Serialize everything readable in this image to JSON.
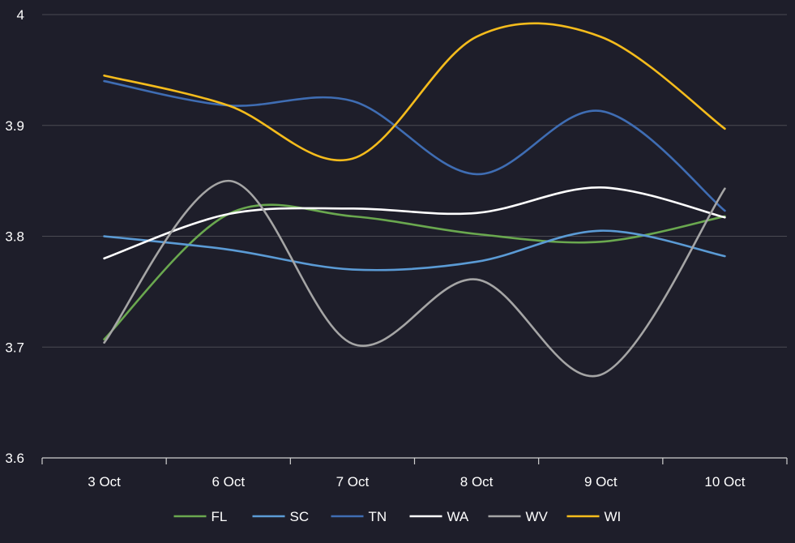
{
  "chart_data": {
    "type": "line",
    "title": "",
    "xlabel": "",
    "ylabel": "",
    "categories": [
      "3 Oct",
      "6 Oct",
      "7 Oct",
      "8 Oct",
      "9 Oct",
      "10 Oct"
    ],
    "ylim": [
      3.6,
      4
    ],
    "yticks": [
      3.6,
      3.7,
      3.8,
      3.9,
      4
    ],
    "ytick_labels": [
      "3.6",
      "3.7",
      "3.8",
      "3.9",
      "4"
    ],
    "grid": true,
    "smooth": true,
    "legend_position": "bottom",
    "series": [
      {
        "name": "FL",
        "color": "#6aa84f",
        "values": [
          3.707,
          3.82,
          3.818,
          3.802,
          3.795,
          3.818
        ]
      },
      {
        "name": "SC",
        "color": "#5b9bd5",
        "values": [
          3.8,
          3.788,
          3.77,
          3.777,
          3.805,
          3.782
        ]
      },
      {
        "name": "TN",
        "color": "#3f6db3",
        "values": [
          3.94,
          3.918,
          3.922,
          3.856,
          3.913,
          3.823
        ]
      },
      {
        "name": "WA",
        "color": "#ffffff",
        "values": [
          3.78,
          3.82,
          3.825,
          3.821,
          3.844,
          3.817
        ]
      },
      {
        "name": "WV",
        "color": "#a5a5a5",
        "values": [
          3.704,
          3.85,
          3.703,
          3.761,
          3.675,
          3.843
        ]
      },
      {
        "name": "WI",
        "color": "#f5bc1c",
        "values": [
          3.945,
          3.918,
          3.87,
          3.98,
          3.98,
          3.897
        ]
      }
    ]
  },
  "colors": {
    "background": "#1e1e2a",
    "grid": "#4a4a52",
    "axis": "#d0d0d0",
    "text": "#ffffff"
  }
}
